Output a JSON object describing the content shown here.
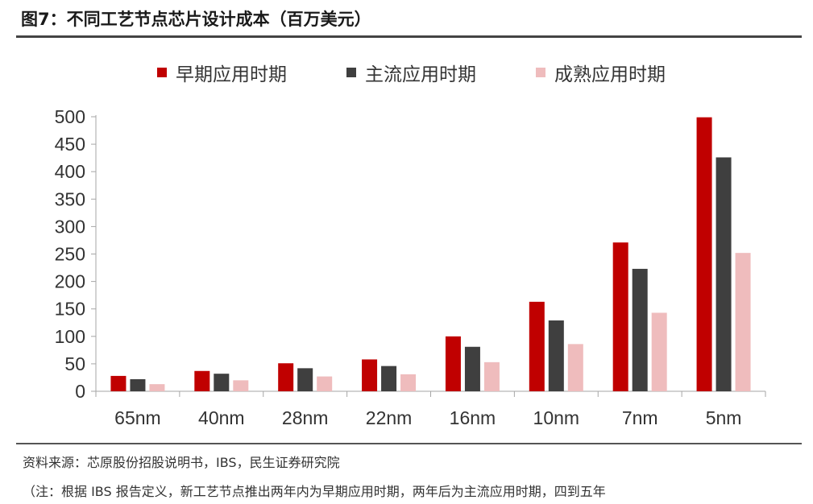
{
  "header": {
    "title": "图7：不同工艺节点芯片设计成本（百万美元）"
  },
  "footer": {
    "source": "资料来源：芯原股份招股说明书，IBS，民生证券研究院",
    "note": "（注：根据 IBS 报告定义，新工艺节点推出两年内为早期应用时期，两年后为主流应用时期，四到五年"
  },
  "chart_data": {
    "type": "bar",
    "title": "图7：不同工艺节点芯片设计成本（百万美元）",
    "categories": [
      "65nm",
      "40nm",
      "28nm",
      "22nm",
      "16nm",
      "10nm",
      "7nm",
      "5nm"
    ],
    "series": [
      {
        "name": "早期应用时期",
        "color": "#c00000",
        "values": [
          28,
          37,
          51,
          58,
          100,
          163,
          271,
          499
        ]
      },
      {
        "name": "主流应用时期",
        "color": "#3f3f3f",
        "values": [
          22,
          32,
          42,
          46,
          81,
          129,
          223,
          426
        ]
      },
      {
        "name": "成熟应用时期",
        "color": "#efbcbd",
        "values": [
          13,
          20,
          27,
          31,
          53,
          86,
          143,
          252
        ]
      }
    ],
    "yticks": [
      0,
      50,
      100,
      150,
      200,
      250,
      300,
      350,
      400,
      450,
      500
    ],
    "ylim": [
      0,
      500
    ],
    "grid": false,
    "legend_position": "top"
  }
}
